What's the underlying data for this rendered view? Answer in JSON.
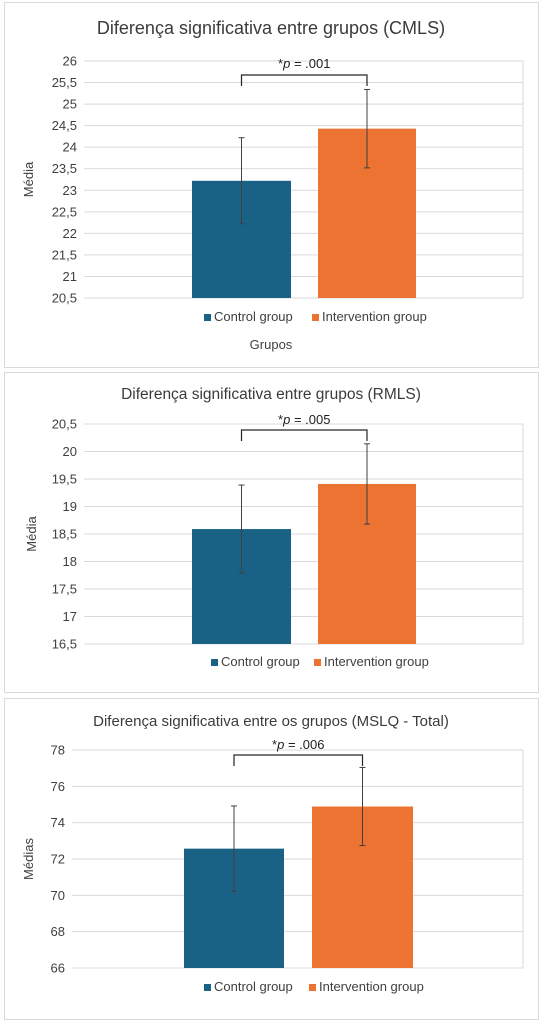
{
  "colors": {
    "control": "#1a6285",
    "intervention": "#ec7332",
    "grid": "#d9d9d9",
    "text": "#404040",
    "title": "#3b3b3b",
    "errbar": "#404040"
  },
  "chart_data": [
    {
      "type": "bar",
      "title": "Diferença significativa entre grupos (CMLS)",
      "ylabel": "Média",
      "xlabel": "Grupos",
      "ylim": [
        20.5,
        26
      ],
      "yticks": [
        "20,5",
        "21",
        "21,5",
        "22",
        "22,5",
        "23",
        "23,5",
        "24",
        "24,5",
        "25",
        "25,5",
        "26"
      ],
      "series": [
        {
          "name": "Control group",
          "value": 23.22,
          "error": 1.0,
          "color": "#1a6285"
        },
        {
          "name": "Intervention group",
          "value": 24.43,
          "error": 0.91,
          "color": "#ec7332"
        }
      ],
      "annotation": {
        "prefix": "*",
        "italic": "p",
        "suffix": " = .001"
      },
      "legend": "bottom",
      "grid": true
    },
    {
      "type": "bar",
      "title": "Diferença significativa entre grupos (RMLS)",
      "ylabel": "Média",
      "xlabel": "",
      "ylim": [
        16.5,
        20.5
      ],
      "yticks": [
        "16,5",
        "17",
        "17,5",
        "18",
        "18,5",
        "19",
        "19,5",
        "20",
        "20,5"
      ],
      "series": [
        {
          "name": "Control group",
          "value": 18.59,
          "error": 0.8,
          "color": "#1a6285"
        },
        {
          "name": "Intervention group",
          "value": 19.41,
          "error": 0.73,
          "color": "#ec7332"
        }
      ],
      "annotation": {
        "prefix": "*",
        "italic": "p",
        "suffix": " = .005"
      },
      "legend": "bottom",
      "grid": true
    },
    {
      "type": "bar",
      "title": "Diferença significativa entre os grupos (MSLQ - Total)",
      "ylabel": "Médias",
      "xlabel": "",
      "ylim": [
        66,
        78
      ],
      "yticks": [
        "66",
        "68",
        "70",
        "72",
        "74",
        "76",
        "78"
      ],
      "series": [
        {
          "name": "Control group",
          "value": 72.57,
          "error": 2.35,
          "color": "#1a6285"
        },
        {
          "name": "Intervention group",
          "value": 74.89,
          "error": 2.15,
          "color": "#ec7332"
        }
      ],
      "annotation": {
        "prefix": "*",
        "italic": "p",
        "suffix": " = .006"
      },
      "legend": "bottom",
      "grid": true
    }
  ]
}
